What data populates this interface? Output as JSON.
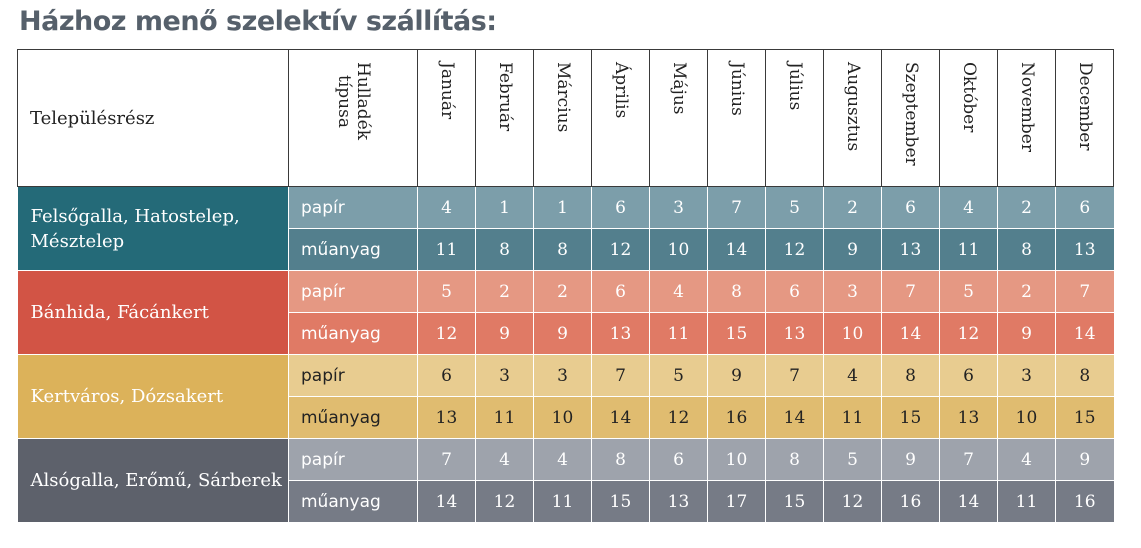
{
  "title": "Házhoz menő szelektív szállítás:",
  "header": {
    "area_label": "Településrész",
    "type_label": "Hulladék\ntípusa",
    "months": [
      "Január",
      "Február",
      "Március",
      "Április",
      "Május",
      "Június",
      "Július",
      "Augusztus",
      "Szeptember",
      "Október",
      "November",
      "December"
    ]
  },
  "colors": {
    "g1": {
      "area": "#246a78",
      "paper": "#7c9eaa",
      "plastic": "#537f8d",
      "paper_text": "#ffffff",
      "plastic_text": "#ffffff"
    },
    "g2": {
      "area": "#d25445",
      "paper": "#e59883",
      "plastic": "#e07a65",
      "paper_text": "#ffffff",
      "plastic_text": "#ffffff"
    },
    "g3": {
      "area": "#dcb25a",
      "paper": "#e8cc90",
      "plastic": "#e0bc70",
      "paper_text": "#222222",
      "plastic_text": "#222222"
    },
    "g4": {
      "area": "#5d616b",
      "paper": "#9ea3ac",
      "plastic": "#767b86",
      "paper_text": "#ffffff",
      "plastic_text": "#ffffff"
    }
  },
  "groups": [
    {
      "area": "Felsőgalla, Hatostelep, Mésztelep",
      "color": "g1",
      "rows": [
        {
          "type": "papír",
          "values": [
            4,
            1,
            1,
            6,
            3,
            7,
            5,
            2,
            6,
            4,
            2,
            6
          ]
        },
        {
          "type": "műanyag",
          "values": [
            11,
            8,
            8,
            12,
            10,
            14,
            12,
            9,
            13,
            11,
            8,
            13
          ]
        }
      ]
    },
    {
      "area": "Bánhida, Fácánkert",
      "color": "g2",
      "rows": [
        {
          "type": "papír",
          "values": [
            5,
            2,
            2,
            6,
            4,
            8,
            6,
            3,
            7,
            5,
            2,
            7
          ]
        },
        {
          "type": "műanyag",
          "values": [
            12,
            9,
            9,
            13,
            11,
            15,
            13,
            10,
            14,
            12,
            9,
            14
          ]
        }
      ]
    },
    {
      "area": "Kertváros, Dózsakert",
      "color": "g3",
      "rows": [
        {
          "type": "papír",
          "values": [
            6,
            3,
            3,
            7,
            5,
            9,
            7,
            4,
            8,
            6,
            3,
            8
          ]
        },
        {
          "type": "műanyag",
          "values": [
            13,
            11,
            10,
            14,
            12,
            16,
            14,
            11,
            15,
            13,
            10,
            15
          ]
        }
      ]
    },
    {
      "area": "Alsógalla, Erőmű, Sárberek",
      "color": "g4",
      "rows": [
        {
          "type": "papír",
          "values": [
            7,
            4,
            4,
            8,
            6,
            10,
            8,
            5,
            9,
            7,
            4,
            9
          ]
        },
        {
          "type": "műanyag",
          "values": [
            14,
            12,
            11,
            15,
            13,
            17,
            15,
            12,
            16,
            14,
            11,
            16
          ]
        }
      ]
    }
  ]
}
